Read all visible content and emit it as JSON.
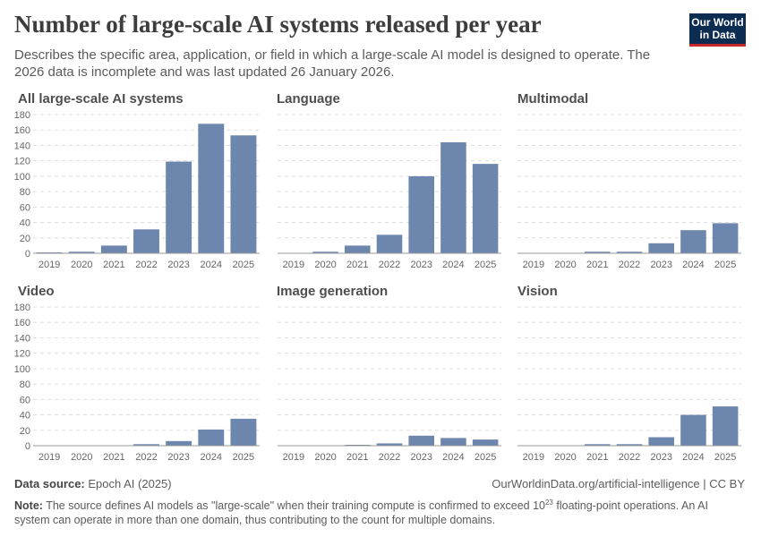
{
  "header": {
    "title": "Number of large-scale AI systems released per year",
    "subtitle": "Describes the specific area, application, or field in which a large-scale AI model is designed to operate. The 2026 data is incomplete and was last updated 26 January 2026.",
    "logo_line1": "Our World",
    "logo_line2": "in Data"
  },
  "footer": {
    "source_label": "Data source:",
    "source": "Epoch AI (2025)",
    "url": "OurWorldinData.org/artificial-intelligence | CC BY",
    "note_label": "Note:",
    "note_pre": "The source defines AI models as \"large-scale\" when their training compute is confirmed to exceed 10",
    "note_sup": "23",
    "note_post": " floating-point operations. An AI system can operate in more than one domain, thus contributing to the count for multiple domains."
  },
  "colors": {
    "bar": "#6d86ae",
    "grid": "#dddddd",
    "axis": "#999999"
  },
  "chart_data": [
    {
      "type": "bar",
      "title": "All large-scale AI systems",
      "categories": [
        "2019",
        "2020",
        "2021",
        "2022",
        "2023",
        "2024",
        "2025"
      ],
      "values": [
        1,
        2,
        10,
        31,
        119,
        168,
        153
      ],
      "ylim": [
        0,
        180
      ],
      "yticks": [
        0,
        20,
        40,
        60,
        80,
        100,
        120,
        140,
        160,
        180
      ],
      "grid": true
    },
    {
      "type": "bar",
      "title": "Language",
      "categories": [
        "2019",
        "2020",
        "2021",
        "2022",
        "2023",
        "2024",
        "2025"
      ],
      "values": [
        0,
        2,
        10,
        24,
        100,
        144,
        116
      ],
      "ylim": [
        0,
        180
      ],
      "grid": true
    },
    {
      "type": "bar",
      "title": "Multimodal",
      "categories": [
        "2019",
        "2020",
        "2021",
        "2022",
        "2023",
        "2024",
        "2025"
      ],
      "values": [
        0,
        0,
        2,
        2,
        13,
        30,
        39
      ],
      "ylim": [
        0,
        180
      ],
      "grid": true
    },
    {
      "type": "bar",
      "title": "Video",
      "categories": [
        "2019",
        "2020",
        "2021",
        "2022",
        "2023",
        "2024",
        "2025"
      ],
      "values": [
        0,
        0,
        0,
        2,
        6,
        21,
        35
      ],
      "ylim": [
        0,
        180
      ],
      "yticks": [
        0,
        20,
        40,
        60,
        80,
        100,
        120,
        140,
        160,
        180
      ],
      "grid": true
    },
    {
      "type": "bar",
      "title": "Image generation",
      "categories": [
        "2019",
        "2020",
        "2021",
        "2022",
        "2023",
        "2024",
        "2025"
      ],
      "values": [
        0,
        0,
        1,
        3,
        13,
        10,
        8
      ],
      "ylim": [
        0,
        180
      ],
      "grid": true
    },
    {
      "type": "bar",
      "title": "Vision",
      "categories": [
        "2019",
        "2020",
        "2021",
        "2022",
        "2023",
        "2024",
        "2025"
      ],
      "values": [
        0,
        0,
        2,
        2,
        11,
        40,
        51
      ],
      "ylim": [
        0,
        180
      ],
      "grid": true
    }
  ]
}
